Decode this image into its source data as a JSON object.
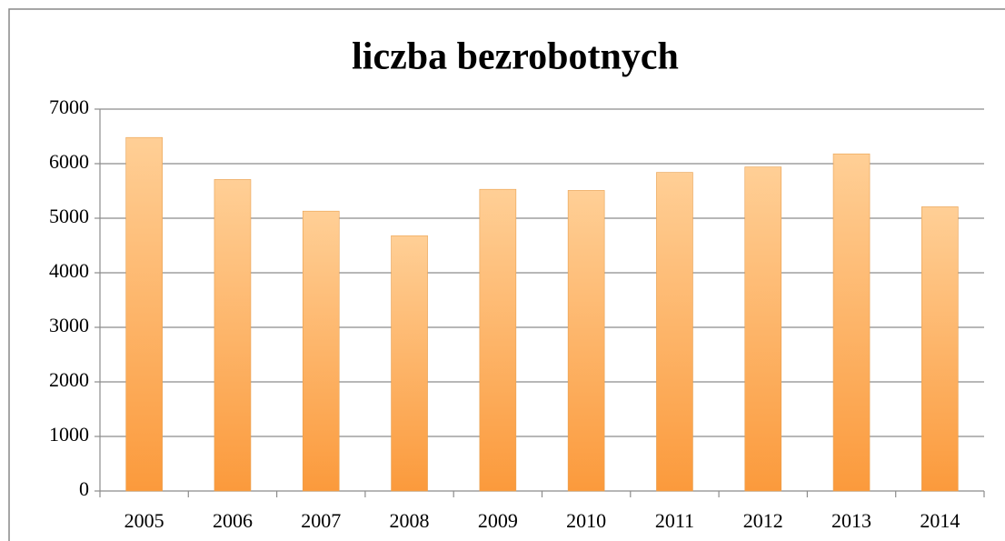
{
  "chart_data": {
    "type": "bar",
    "title": "liczba bezrobotnych",
    "categories": [
      "2005",
      "2006",
      "2007",
      "2008",
      "2009",
      "2010",
      "2011",
      "2012",
      "2013",
      "2014"
    ],
    "values": [
      6480,
      5710,
      5130,
      4680,
      5530,
      5510,
      5840,
      5940,
      6180,
      5210
    ],
    "color": "#fb9a3c",
    "ylim": [
      0,
      7000
    ],
    "yticks": [
      0,
      1000,
      2000,
      3000,
      4000,
      5000,
      6000,
      7000
    ],
    "grid": true
  }
}
